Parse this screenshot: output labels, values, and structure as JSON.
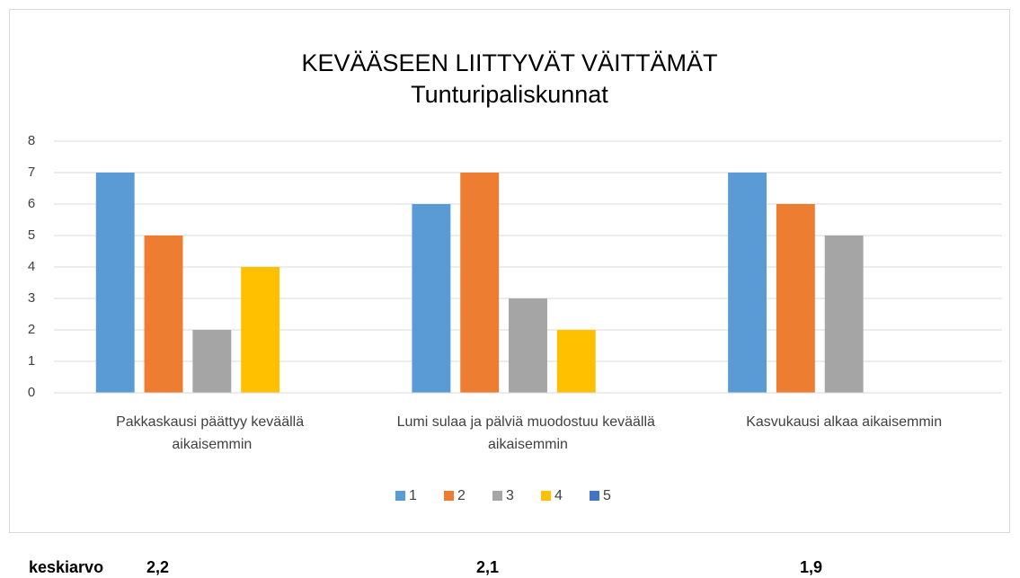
{
  "chart_data": {
    "type": "bar",
    "title": "KEVÄÄSEEN LIITTYVÄT VÄITTÄMÄT",
    "subtitle": "Tunturipaliskunnat",
    "categories": [
      "Pakkaskausi päättyy keväällä aikaisemmin",
      "Lumi sulaa ja pälviä muodostuu keväällä aikaisemmin",
      "Kasvukausi alkaa aikaisemmin"
    ],
    "series": [
      {
        "name": "1",
        "color": "#5b9bd5",
        "values": [
          7,
          6,
          7
        ]
      },
      {
        "name": "2",
        "color": "#ed7d31",
        "values": [
          5,
          7,
          6
        ]
      },
      {
        "name": "3",
        "color": "#a5a5a5",
        "values": [
          2,
          3,
          5
        ]
      },
      {
        "name": "4",
        "color": "#ffc000",
        "values": [
          4,
          2,
          0
        ]
      },
      {
        "name": "5",
        "color": "#4472c4",
        "values": [
          0,
          0,
          0
        ]
      }
    ],
    "ylim": [
      0,
      8
    ],
    "yticks": [
      0,
      1,
      2,
      3,
      4,
      5,
      6,
      7,
      8
    ],
    "grid": true,
    "legend": "bottom"
  },
  "footer": {
    "label": "keskiarvo",
    "values": [
      "2,2",
      "2,1",
      "1,9"
    ]
  }
}
